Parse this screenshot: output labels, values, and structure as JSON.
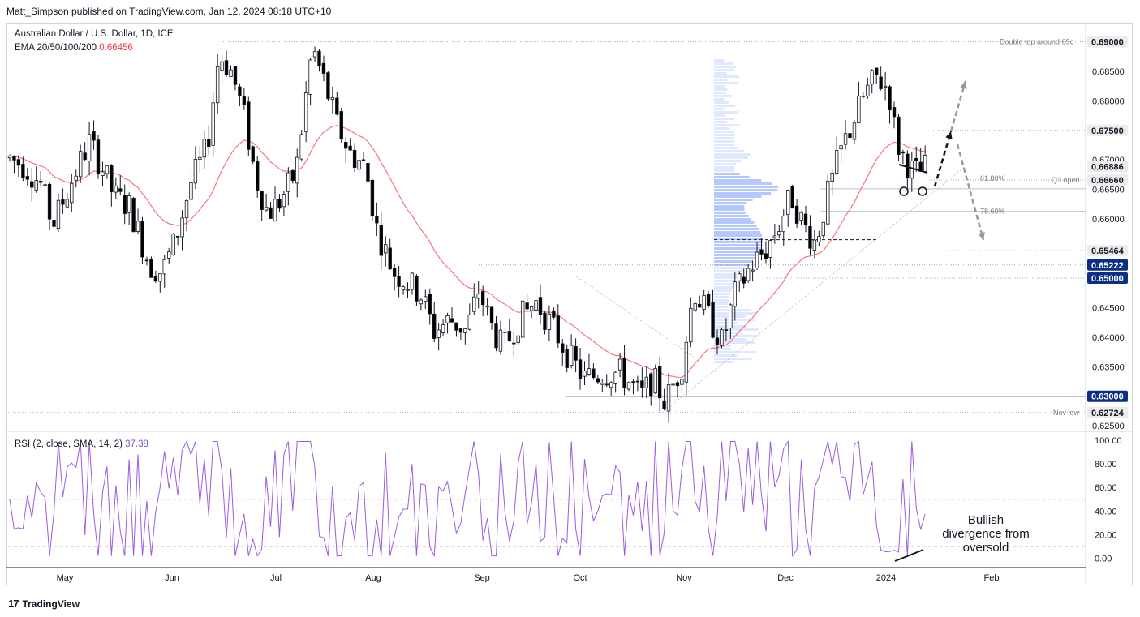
{
  "header": {
    "credit": "Matt_Simpson published on TradingView.com, Jan 12, 2024 08:18 UTC+10"
  },
  "legend": {
    "symbol": "Australian Dollar / U.S. Dollar, 1D, ICE",
    "ema_label": "EMA 20/50/100/200",
    "ema_value": "0.66456",
    "rsi_label": "RSI (2, close, SMA, 14, 2)",
    "rsi_value": "37.38"
  },
  "footer": {
    "brand": "TradingView"
  },
  "colors": {
    "up_candle": "#ffffff",
    "down_candle": "#000000",
    "ema": "#f4777f",
    "rsi": "#9c5ce0",
    "volume_profile": "#2962ff",
    "price_tag_dark": "#0c2f86",
    "price_tag_light": "#ececec"
  },
  "annotations": {
    "double_top": "Double top around 69c",
    "q3_open": "Q3 open",
    "nov_low": "Nov low",
    "fib_618": "61.80%",
    "fib_786": "78.60%",
    "bullish_divergence": "Bullish divergence from oversold"
  },
  "chart_data": [
    {
      "type": "candlestick",
      "title": "Australian Dollar / U.S. Dollar, 1D, ICE",
      "x_ticks": [
        "May",
        "Jun",
        "Jul",
        "Aug",
        "Sep",
        "Oct",
        "Nov",
        "Dec",
        "2024",
        "Feb"
      ],
      "y_ticks": [
        "0.62500",
        "0.63000",
        "0.63500",
        "0.64000",
        "0.64500",
        "0.65000",
        "0.65500",
        "0.66000",
        "0.66500",
        "0.67000",
        "0.67500",
        "0.68000",
        "0.68500",
        "0.69000"
      ],
      "ylim": [
        0.6245,
        0.6915
      ],
      "price_tags": [
        {
          "label": "0.69000",
          "value": 0.69,
          "style": "light"
        },
        {
          "label": "0.67500",
          "value": 0.675,
          "style": "light"
        },
        {
          "label": "0.66886",
          "value": 0.66886,
          "style": "light"
        },
        {
          "label": "0.66660",
          "value": 0.6666,
          "style": "light"
        },
        {
          "label": "0.65464",
          "value": 0.65464,
          "style": "light"
        },
        {
          "label": "0.65222",
          "value": 0.65222,
          "style": "dark"
        },
        {
          "label": "0.65000",
          "value": 0.65,
          "style": "dark"
        },
        {
          "label": "0.63000",
          "value": 0.63,
          "style": "dark"
        },
        {
          "label": "0.62724",
          "value": 0.62724,
          "style": "light"
        }
      ],
      "key_levels": [
        0.69,
        0.675,
        0.6666,
        0.65464,
        0.65222,
        0.65,
        0.63,
        0.62724
      ],
      "fib_levels": {
        "61.80%": 0.6666,
        "78.60%": 0.6613
      },
      "candles_approx": [
        {
          "month": "May",
          "open": 0.665,
          "high": 0.672,
          "low": 0.658,
          "close": 0.668
        },
        {
          "month": "Jun",
          "open": 0.668,
          "high": 0.69,
          "low": 0.66,
          "close": 0.681
        },
        {
          "month": "Jul",
          "open": 0.681,
          "high": 0.69,
          "low": 0.66,
          "close": 0.67
        },
        {
          "month": "Aug",
          "open": 0.67,
          "high": 0.672,
          "low": 0.636,
          "close": 0.642
        },
        {
          "month": "Sep",
          "open": 0.642,
          "high": 0.652,
          "low": 0.636,
          "close": 0.641
        },
        {
          "month": "Oct",
          "open": 0.641,
          "high": 0.65,
          "low": 0.628,
          "close": 0.631
        },
        {
          "month": "Nov",
          "open": 0.631,
          "high": 0.663,
          "low": 0.627,
          "close": 0.66
        },
        {
          "month": "Dec",
          "open": 0.66,
          "high": 0.687,
          "low": 0.653,
          "close": 0.682
        },
        {
          "month": "2024",
          "open": 0.682,
          "high": 0.684,
          "low": 0.664,
          "close": 0.668
        }
      ]
    },
    {
      "type": "line",
      "title": "RSI (2, close, SMA, 14, 2)",
      "y_ticks": [
        "0.00",
        "20.00",
        "40.00",
        "60.00",
        "80.00",
        "100.00"
      ],
      "ylim": [
        -7,
        103
      ],
      "guide_levels": [
        90,
        50,
        10
      ],
      "last_value": 37.38
    }
  ]
}
